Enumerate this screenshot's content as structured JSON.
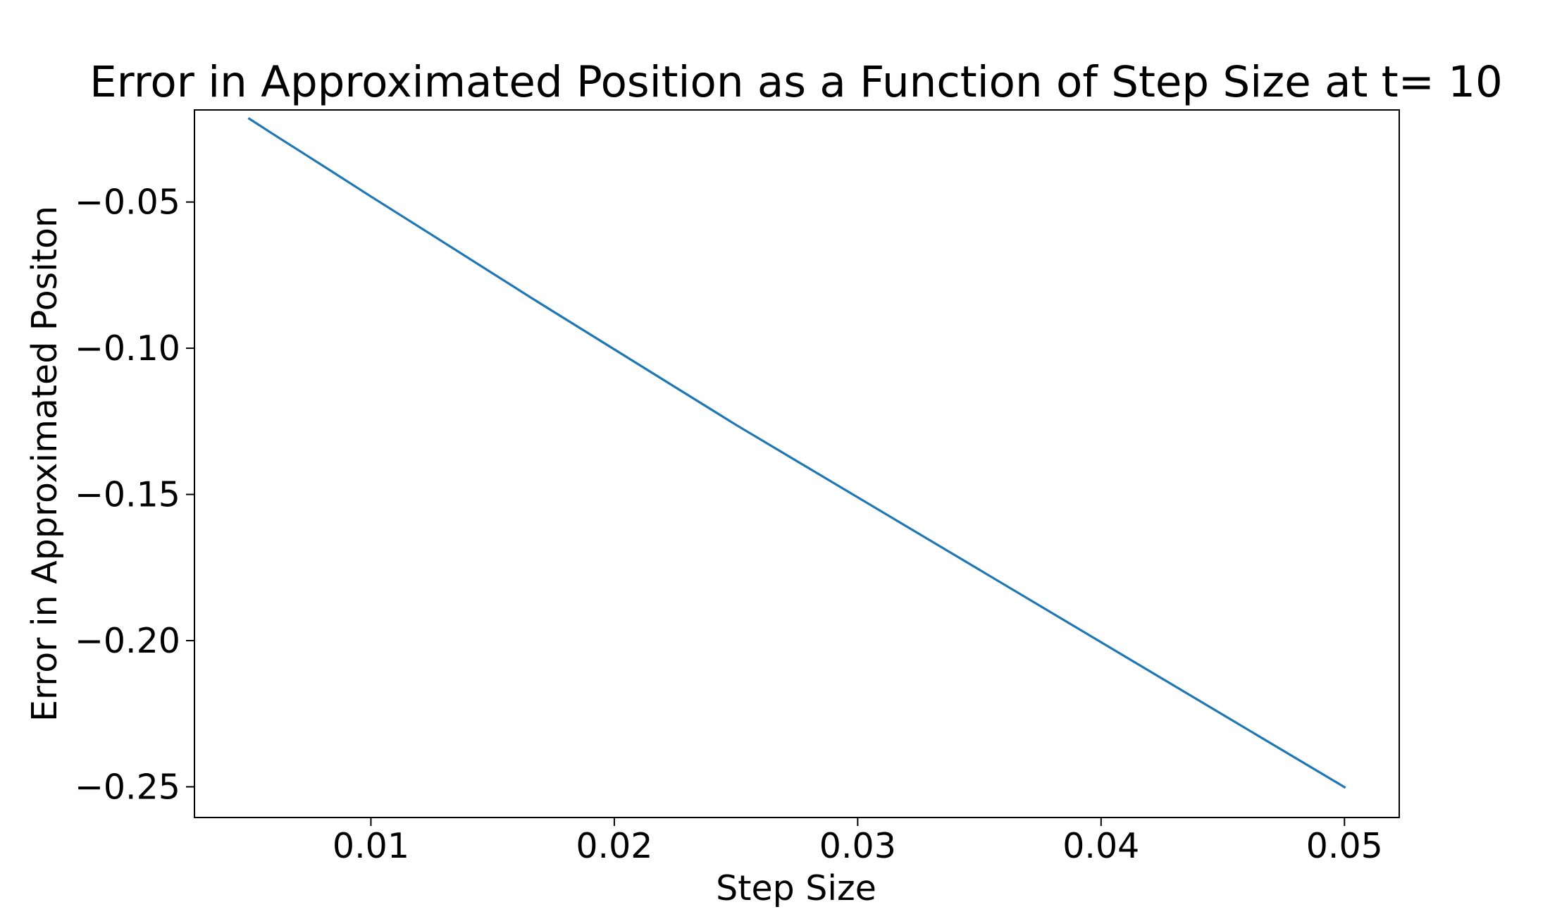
{
  "chart_data": {
    "type": "line",
    "title": "Error in Approximated Position as a Function of Step Size at t= 10",
    "xlabel": "Step Size",
    "ylabel": "Error in Approximated Positon",
    "xlim": [
      0.00275,
      0.05225
    ],
    "ylim": [
      -0.2605,
      -0.0185
    ],
    "xticks": [
      0.01,
      0.02,
      0.03,
      0.04,
      0.05
    ],
    "xtick_labels": [
      "0.01",
      "0.02",
      "0.03",
      "0.04",
      "0.05"
    ],
    "yticks": [
      -0.05,
      -0.1,
      -0.15,
      -0.2,
      -0.25
    ],
    "ytick_labels": [
      "−0.05",
      "−0.10",
      "−0.15",
      "−0.20",
      "−0.25"
    ],
    "grid": false,
    "series": [
      {
        "color": "#1f77b4",
        "x": [
          0.005,
          0.00556,
          0.00625,
          0.00714,
          0.00833,
          0.01,
          0.0125,
          0.01667,
          0.025,
          0.05
        ],
        "y": [
          -0.0215,
          -0.0245,
          -0.0282,
          -0.0329,
          -0.0392,
          -0.0481,
          -0.0612,
          -0.0832,
          -0.1262,
          -0.2501
        ]
      }
    ]
  }
}
